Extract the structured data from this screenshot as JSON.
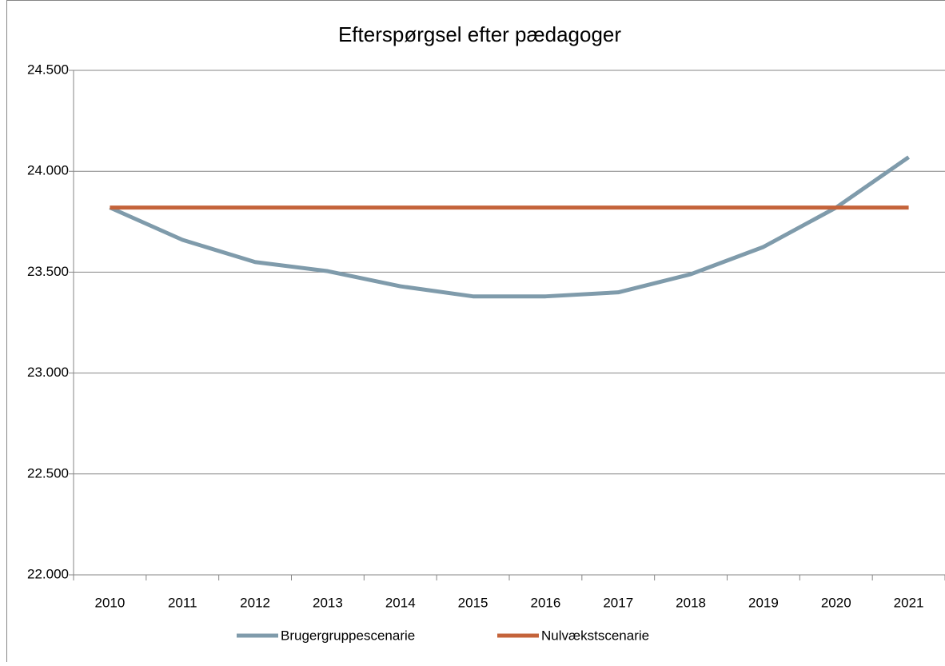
{
  "chart_data": {
    "type": "line",
    "title": "Efterspørgsel efter pædagoger",
    "categories": [
      "2010",
      "2011",
      "2012",
      "2013",
      "2014",
      "2015",
      "2016",
      "2017",
      "2018",
      "2019",
      "2020",
      "2021"
    ],
    "series": [
      {
        "name": "Brugergruppescenarie",
        "color": "#7f9bab",
        "values": [
          23820,
          23660,
          23550,
          23505,
          23430,
          23380,
          23380,
          23400,
          23490,
          23625,
          23820,
          24070
        ]
      },
      {
        "name": "Nulvækstscenarie",
        "color": "#c4633a",
        "values": [
          23820,
          23820,
          23820,
          23820,
          23820,
          23820,
          23820,
          23820,
          23820,
          23820,
          23820,
          23820
        ]
      }
    ],
    "ylim": [
      22000,
      24500
    ],
    "yticks": [
      {
        "value": 22000,
        "label": "22.000"
      },
      {
        "value": 22500,
        "label": "22.500"
      },
      {
        "value": 23000,
        "label": "23.000"
      },
      {
        "value": 23500,
        "label": "23.500"
      },
      {
        "value": 24000,
        "label": "24.000"
      },
      {
        "value": 24500,
        "label": "24.500"
      }
    ],
    "grid": true,
    "legend": "bottom"
  }
}
